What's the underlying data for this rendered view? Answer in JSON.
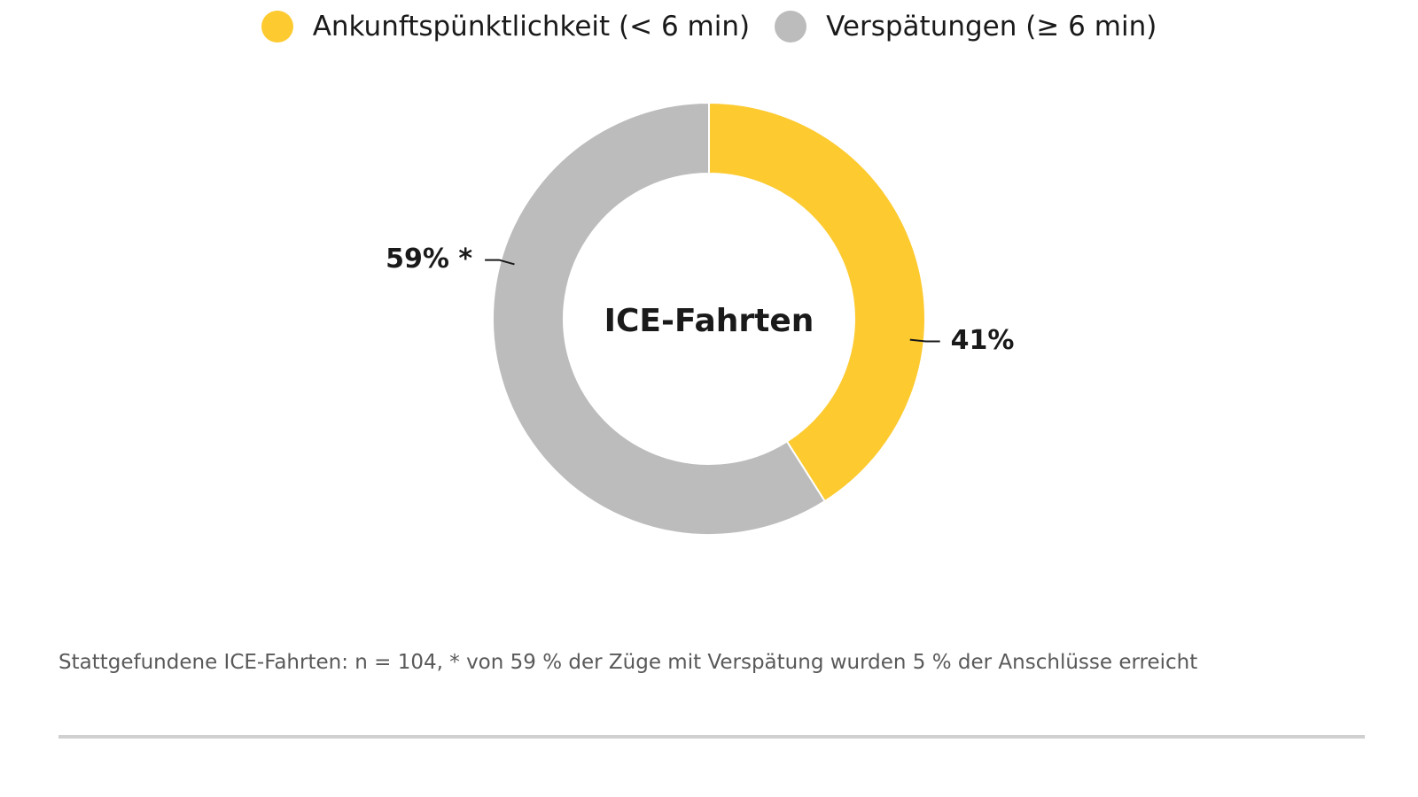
{
  "colors": {
    "on_time": "#fdca30",
    "delayed": "#bcbcbc",
    "text": "#1a1a1a",
    "footnote": "#595959",
    "divider": "#d0d0d0"
  },
  "chart_data": {
    "type": "pie",
    "variant": "donut",
    "center_label": "ICE-Fahrten",
    "legend_position": "top-center",
    "slices": [
      {
        "name": "Ankunftspünktlichkeit (< 6 min)",
        "value": 41,
        "label": "41%",
        "color": "#fdca30"
      },
      {
        "name": "Verspätungen (≥ 6 min)",
        "value": 59,
        "label": "59% *",
        "color": "#bcbcbc"
      }
    ]
  },
  "footnote": "Stattgefundene ICE-Fahrten: n = 104, * von 59 % der Züge mit Verspätung wurden 5 % der Anschlüsse erreicht"
}
